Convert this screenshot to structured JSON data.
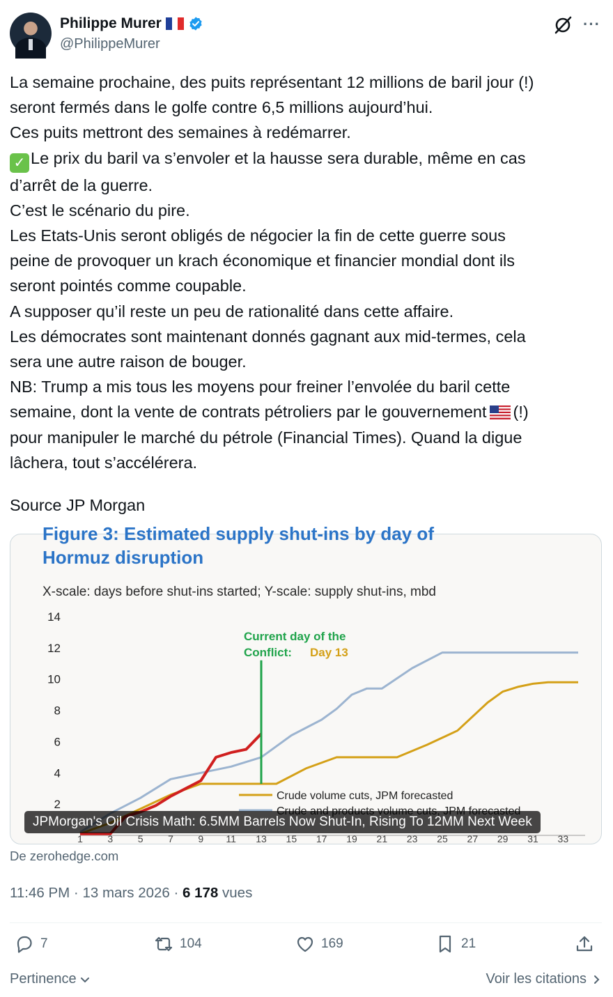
{
  "author": {
    "name": "Philippe Murer",
    "handle": "@PhilippeMurer"
  },
  "tweet": {
    "lines": [
      "La semaine prochaine, des puits représentant 12 millions de baril jour (!)",
      "seront fermés dans le golfe contre 6,5 millions aujourd’hui.",
      "Ces puits mettront des semaines à redémarrer.",
      "Le prix du baril va s’envoler et la hausse sera durable, même en cas",
      "d’arrêt de la guerre.",
      "C’est le scénario du pire.",
      "Les Etats-Unis seront obligés de négocier la fin de cette guerre sous",
      "peine de provoquer un krach économique et financier mondial dont ils",
      "seront pointés comme coupable.",
      "A supposer qu’il reste un peu de rationalité dans cette affaire.",
      "Les démocrates sont maintenant donnés gagnant aux mid-termes, cela",
      "sera une autre raison de bouger.",
      "NB: Trump a mis tous les moyens pour freiner l’envolée du baril cette",
      "semaine, dont la vente de contrats pétroliers par le gouvernement",
      "(!)",
      "pour manipuler le marché du pétrole (Financial Times). Quand la digue",
      "lâchera, tout s’accélérera."
    ],
    "source": "Source JP Morgan"
  },
  "card": {
    "caption": "JPMorgan's Oil Crisis Math: 6.5MM Barrels Now Shut-In, Rising To 12MM Next Week",
    "domain": "De zerohedge.com"
  },
  "chart_data": {
    "type": "line",
    "title": "Figure 3: Estimated supply shut-ins by day of Hormuz disruption",
    "subtitle": "X-scale: days before shut-ins started; Y-scale: supply shut-ins, mbd",
    "annotation": [
      "Current day of the",
      "Conflict:",
      "Day 13"
    ],
    "yticks": [
      2,
      4,
      6,
      8,
      10,
      12,
      14
    ],
    "ylim": [
      0,
      14
    ],
    "xlim": [
      1,
      34
    ],
    "current_day": 13,
    "series": [
      {
        "name": "",
        "color": "#d01f1f",
        "x": [
          1,
          3,
          4,
          5,
          6,
          7,
          8,
          9,
          10,
          11,
          12,
          13
        ],
        "y": [
          0.1,
          0.1,
          1.2,
          1.5,
          1.9,
          2.5,
          3.0,
          3.5,
          5.0,
          5.3,
          5.5,
          6.5
        ]
      },
      {
        "name": "Crude volume cuts, JPM forecasted",
        "color": "#d4a017",
        "x": [
          1,
          3,
          5,
          7,
          9,
          11,
          13,
          14,
          16,
          18,
          20,
          22,
          24,
          26,
          28,
          29,
          30,
          31,
          32,
          33,
          34
        ],
        "y": [
          0.1,
          0.8,
          1.7,
          2.6,
          3.3,
          3.3,
          3.3,
          3.3,
          4.3,
          5.0,
          5.0,
          5.0,
          5.8,
          6.7,
          8.5,
          9.2,
          9.5,
          9.7,
          9.8,
          9.8,
          9.8
        ]
      },
      {
        "name": "Crude and products volume cuts, JPM forecasted",
        "color": "#9cb4d0",
        "x": [
          1,
          3,
          5,
          7,
          9,
          11,
          13,
          15,
          17,
          18,
          19,
          20,
          21,
          23,
          25,
          27,
          29,
          31,
          34
        ],
        "y": [
          0.2,
          1.4,
          2.4,
          3.6,
          4.0,
          4.4,
          5.0,
          6.4,
          7.4,
          8.1,
          9.0,
          9.4,
          9.4,
          10.7,
          11.7,
          11.7,
          11.7,
          11.7,
          11.7
        ]
      }
    ]
  },
  "meta": {
    "time": "11:46 PM · 13 mars 2026 · ",
    "views": "6 178",
    "views_label": " vues"
  },
  "actions": {
    "replies": "7",
    "reposts": "104",
    "likes": "169",
    "bookmarks": "21"
  },
  "footer": {
    "sort": "Pertinence",
    "quotes": "Voir les citations"
  }
}
